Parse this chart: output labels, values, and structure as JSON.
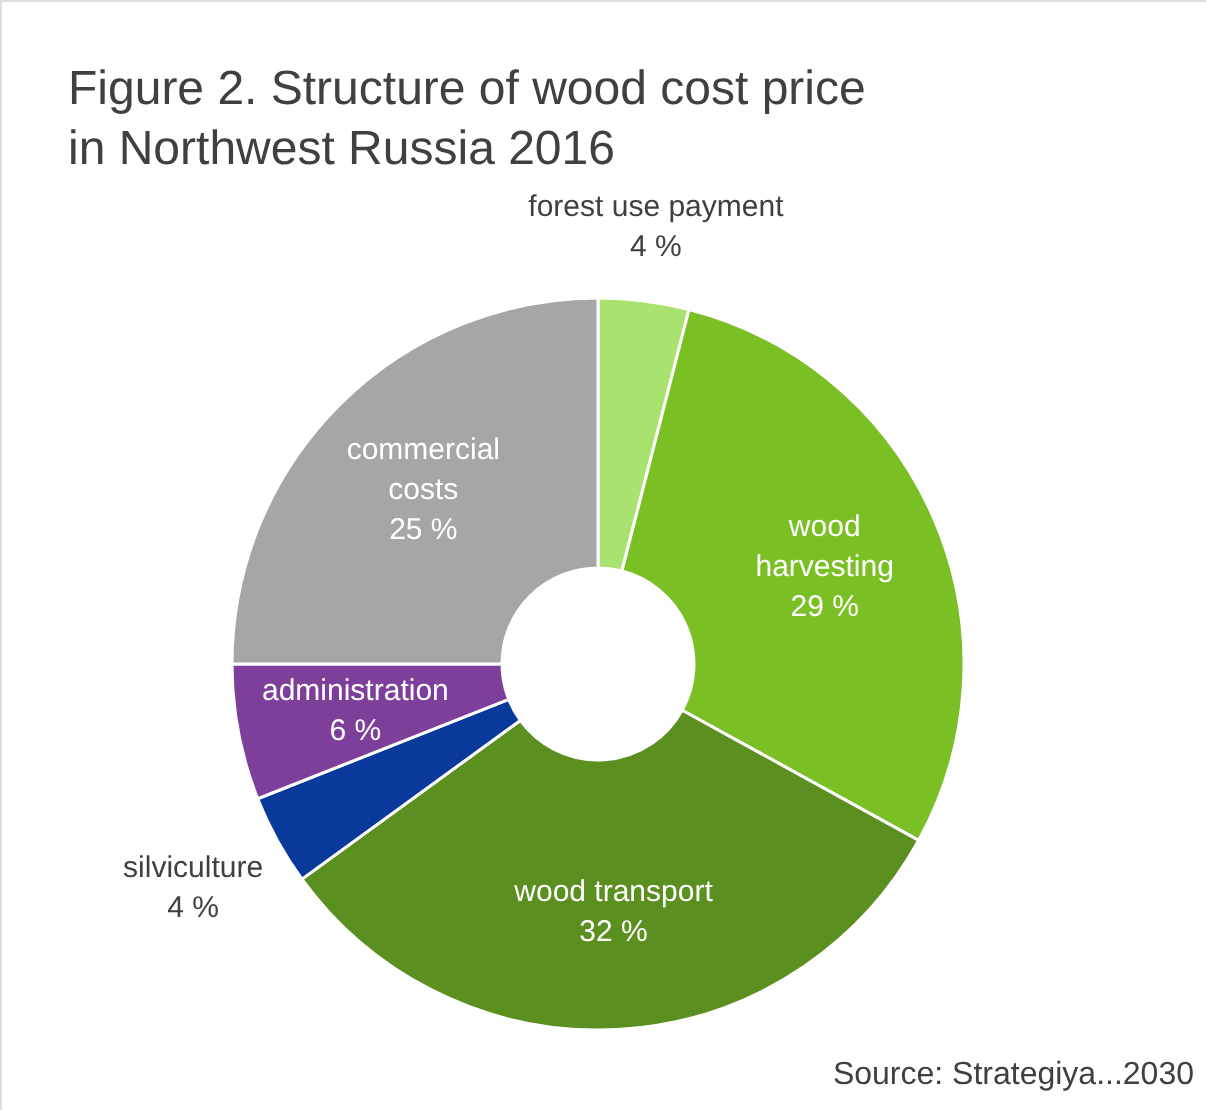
{
  "chart_data": {
    "type": "donut",
    "title": "Figure 2. Structure of wood cost price in Northwest Russia 2016",
    "categories": [
      "forest use payment",
      "wood harvesting",
      "wood transport",
      "silviculture",
      "administration",
      "commercial costs"
    ],
    "values": [
      4,
      29,
      32,
      4,
      6,
      25
    ],
    "colors": [
      "#a9e26f",
      "#7abf24",
      "#5b8f20",
      "#0a399c",
      "#7e3f9a",
      "#a6a6a6"
    ],
    "value_labels": [
      "4 %",
      "29 %",
      "32 %",
      "4 %",
      "6 %",
      "25 %"
    ],
    "annotations": [
      "Source: Strategiya...2030"
    ]
  }
}
